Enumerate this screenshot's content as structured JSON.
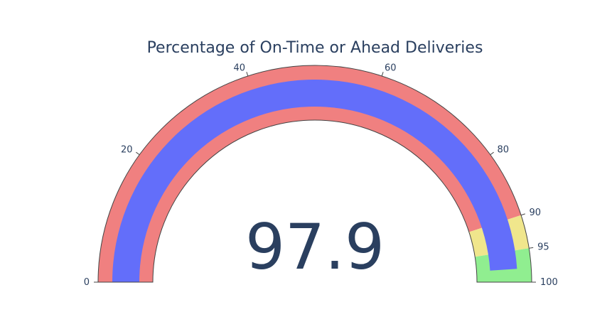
{
  "chart_data": {
    "type": "gauge",
    "title": "Percentage of On-Time or Ahead Deliveries",
    "value": 97.9,
    "value_label": "97.9",
    "range": [
      0,
      100
    ],
    "ticks": [
      {
        "value": 0,
        "label": "0"
      },
      {
        "value": 20,
        "label": "20"
      },
      {
        "value": 40,
        "label": "40"
      },
      {
        "value": 60,
        "label": "60"
      },
      {
        "value": 80,
        "label": "80"
      },
      {
        "value": 90,
        "label": "90"
      },
      {
        "value": 95,
        "label": "95"
      },
      {
        "value": 100,
        "label": "100"
      }
    ],
    "steps": [
      {
        "range": [
          0,
          90
        ],
        "color": "#f08080"
      },
      {
        "range": [
          90,
          95
        ],
        "color": "#f0e68c"
      },
      {
        "range": [
          95,
          100
        ],
        "color": "#90ee90"
      }
    ],
    "bar_color": "#636efa"
  }
}
